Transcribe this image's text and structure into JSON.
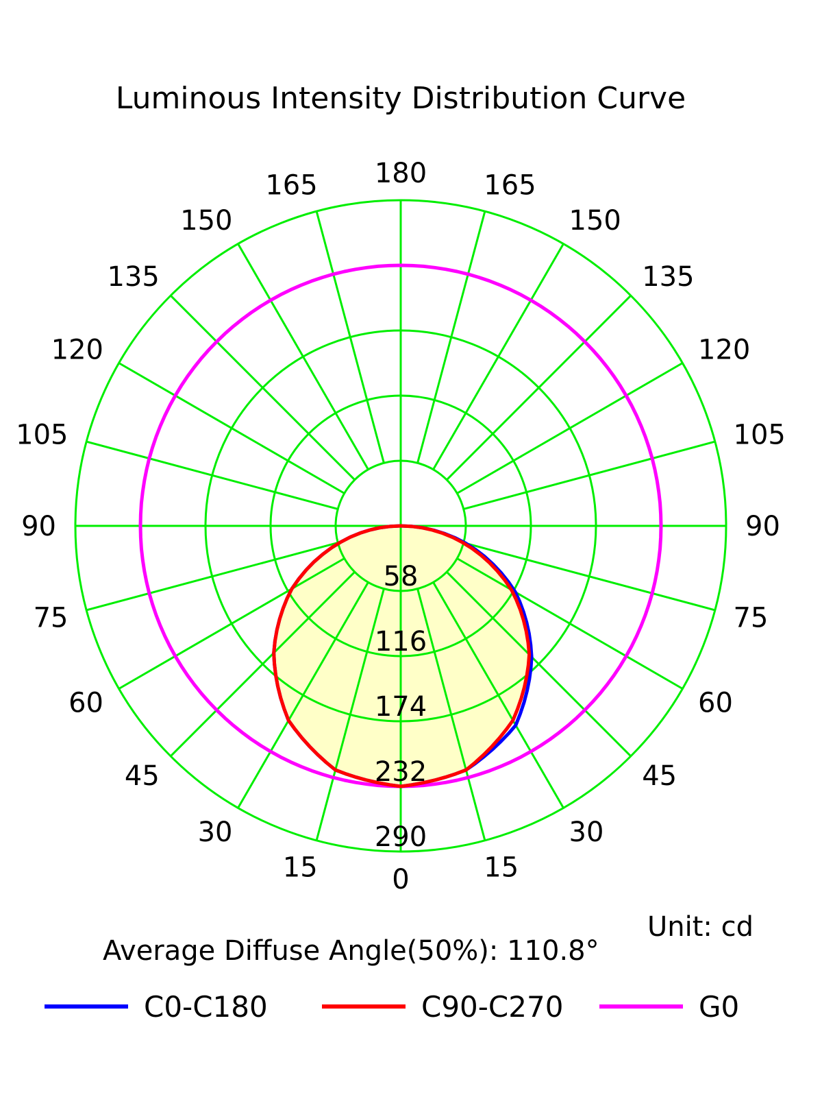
{
  "chart_data": {
    "type": "polar",
    "title": "Luminous Intensity Distribution Curve",
    "unit_label": "Unit: cd",
    "average_angle_label": "Average Diffuse Angle(50%): 110.8°",
    "radial_ticks": [
      58,
      116,
      174,
      232,
      290
    ],
    "r_max": 290,
    "angle_labels_left": [
      "0",
      "15",
      "30",
      "45",
      "60",
      "75",
      "90",
      "105",
      "120",
      "135",
      "150",
      "165",
      "180"
    ],
    "angle_labels_right": [
      "15",
      "30",
      "45",
      "60",
      "75",
      "90",
      "105",
      "120",
      "135",
      "150",
      "165"
    ],
    "grid": true,
    "grid_color": "#00ee00",
    "fill_color": "#ffffc8",
    "legend_position": "bottom",
    "series": [
      {
        "name": "C0-C180",
        "color": "#0000ff",
        "gamma": [
          0,
          15,
          30,
          45,
          60,
          75,
          90,
          105,
          120,
          135,
          150,
          165,
          180
        ],
        "left": [
          232,
          225,
          200,
          160,
          112,
          55,
          0,
          0,
          0,
          0,
          0,
          0,
          0
        ],
        "right": [
          232,
          225,
          205,
          165,
          118,
          60,
          0,
          0,
          0,
          0,
          0,
          0,
          0
        ]
      },
      {
        "name": "C90-C270",
        "color": "#ff0000",
        "gamma": [
          0,
          15,
          30,
          45,
          60,
          75,
          90,
          105,
          120,
          135,
          150,
          165,
          180
        ],
        "left": [
          232,
          225,
          200,
          160,
          112,
          55,
          0,
          0,
          0,
          0,
          0,
          0,
          0
        ],
        "right": [
          232,
          225,
          200,
          162,
          114,
          57,
          0,
          0,
          0,
          0,
          0,
          0,
          0
        ]
      },
      {
        "name": "G0",
        "color": "#ff00ff",
        "gamma": [
          0,
          15,
          30,
          45,
          60,
          75,
          90,
          105,
          120,
          135,
          150,
          165,
          180
        ],
        "left": [
          232,
          232,
          232,
          232,
          232,
          232,
          232,
          232,
          232,
          232,
          232,
          232,
          232
        ],
        "right": [
          232,
          232,
          232,
          232,
          232,
          232,
          232,
          232,
          232,
          232,
          232,
          232,
          232
        ]
      }
    ]
  }
}
